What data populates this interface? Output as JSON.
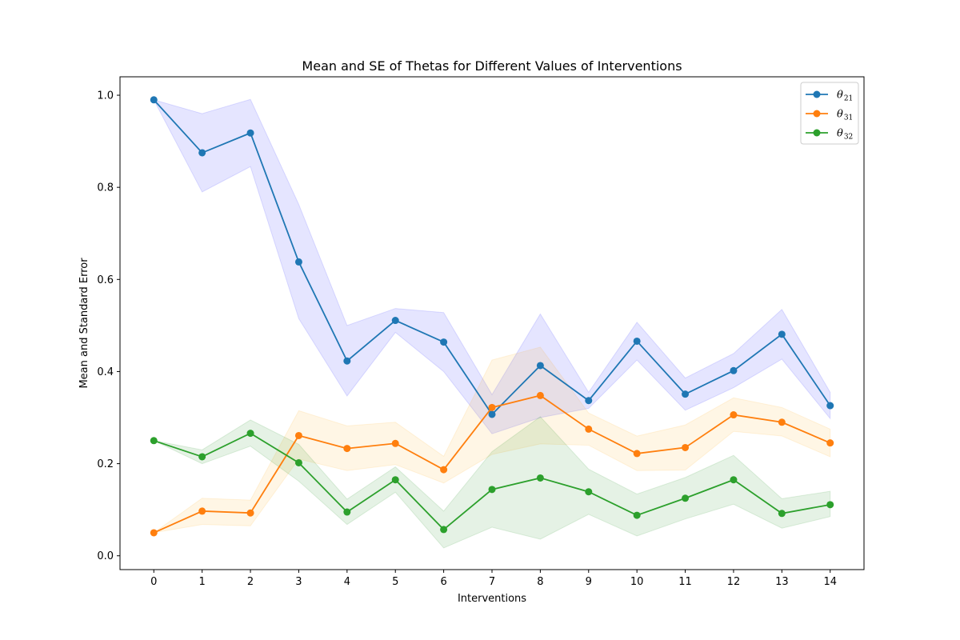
{
  "chart_data": {
    "type": "line",
    "title": "Mean and SE of Thetas for Different Values of Interventions",
    "xlabel": "Interventions",
    "ylabel": "Mean and Standard Error",
    "x": [
      0,
      1,
      2,
      3,
      4,
      5,
      6,
      7,
      8,
      9,
      10,
      11,
      12,
      13,
      14
    ],
    "xlim": [
      -0.7,
      14.7
    ],
    "ylim": [
      -0.03,
      1.04
    ],
    "xticks": [
      "0",
      "1",
      "2",
      "3",
      "4",
      "5",
      "6",
      "7",
      "8",
      "9",
      "10",
      "11",
      "12",
      "13",
      "14"
    ],
    "yticks": [
      0.0,
      0.2,
      0.4,
      0.6,
      0.8,
      1.0
    ],
    "ytick_labels": [
      "0.0",
      "0.2",
      "0.4",
      "0.6",
      "0.8",
      "1.0"
    ],
    "grid": false,
    "legend_position": "top-right",
    "series": [
      {
        "name": "θ",
        "subscript": "21",
        "color": "#1f77b4",
        "band_color": "#0000ff",
        "values": [
          0.99,
          0.875,
          0.918,
          0.638,
          0.423,
          0.511,
          0.464,
          0.307,
          0.413,
          0.337,
          0.466,
          0.351,
          0.402,
          0.481,
          0.326
        ],
        "band_lower": [
          0.99,
          0.79,
          0.845,
          0.515,
          0.347,
          0.485,
          0.4,
          0.265,
          0.3,
          0.32,
          0.425,
          0.316,
          0.365,
          0.427,
          0.298
        ],
        "band_upper": [
          0.99,
          0.96,
          0.991,
          0.763,
          0.5,
          0.537,
          0.528,
          0.35,
          0.525,
          0.355,
          0.507,
          0.386,
          0.439,
          0.535,
          0.355
        ]
      },
      {
        "name": "θ",
        "subscript": "31",
        "color": "#ff7f0e",
        "band_color": "#ffa500",
        "values": [
          0.05,
          0.097,
          0.093,
          0.261,
          0.233,
          0.244,
          0.187,
          0.322,
          0.348,
          0.275,
          0.222,
          0.235,
          0.306,
          0.29,
          0.245
        ],
        "band_lower": [
          0.05,
          0.068,
          0.065,
          0.21,
          0.185,
          0.198,
          0.158,
          0.22,
          0.243,
          0.24,
          0.185,
          0.186,
          0.27,
          0.26,
          0.215
        ],
        "band_upper": [
          0.05,
          0.125,
          0.121,
          0.315,
          0.282,
          0.29,
          0.216,
          0.425,
          0.453,
          0.31,
          0.26,
          0.284,
          0.343,
          0.322,
          0.275
        ]
      },
      {
        "name": "θ",
        "subscript": "32",
        "color": "#2ca02c",
        "band_color": "#008000",
        "values": [
          0.25,
          0.215,
          0.266,
          0.202,
          0.095,
          0.165,
          0.057,
          0.144,
          0.169,
          0.139,
          0.088,
          0.125,
          0.165,
          0.092,
          0.111
        ],
        "band_lower": [
          0.25,
          0.2,
          0.238,
          0.162,
          0.068,
          0.138,
          0.017,
          0.062,
          0.036,
          0.09,
          0.043,
          0.08,
          0.112,
          0.06,
          0.085
        ],
        "band_upper": [
          0.25,
          0.23,
          0.295,
          0.242,
          0.123,
          0.193,
          0.097,
          0.226,
          0.302,
          0.188,
          0.134,
          0.17,
          0.218,
          0.124,
          0.14
        ]
      }
    ]
  }
}
